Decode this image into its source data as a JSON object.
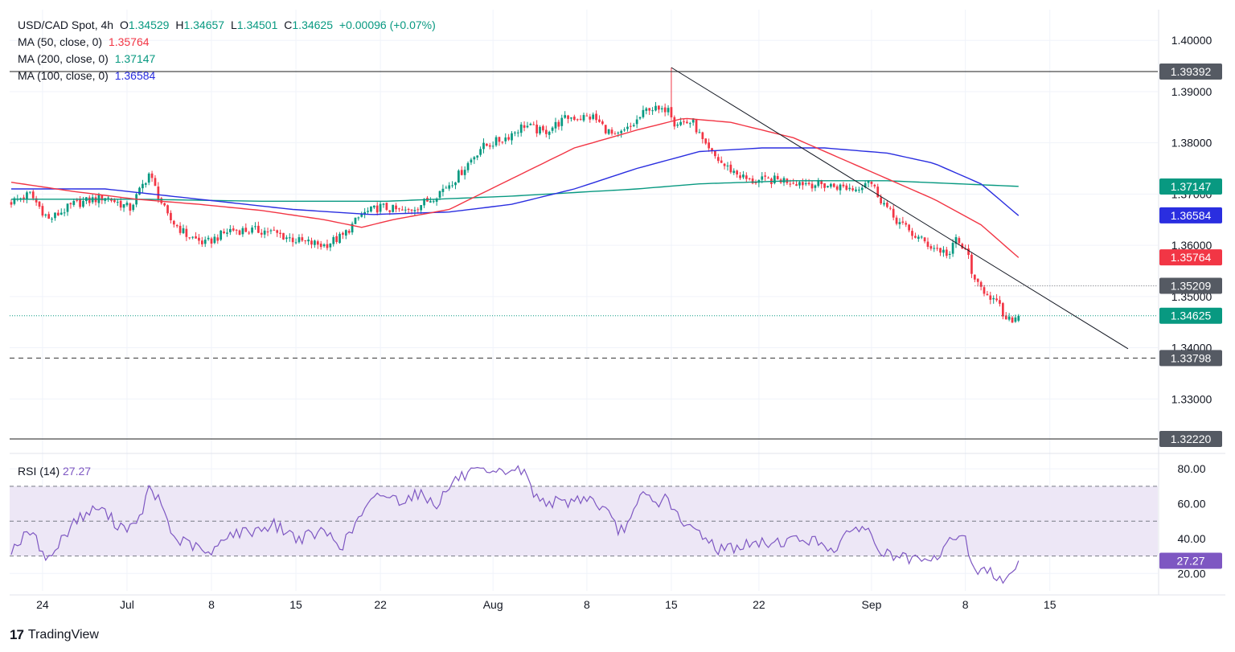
{
  "header": {
    "symbol": "USD/CAD Spot, 4h",
    "open_label": "O",
    "open": "1.34529",
    "high_label": "H",
    "high": "1.34657",
    "low_label": "L",
    "low": "1.34501",
    "close_label": "C",
    "close": "1.34625",
    "change": "+0.00096 (+0.07%)"
  },
  "ma_legend": [
    {
      "label": "MA (50, close, 0)",
      "value": "1.35764",
      "color": "#f23645"
    },
    {
      "label": "MA (200, close, 0)",
      "value": "1.37147",
      "color": "#089981"
    },
    {
      "label": "MA (100, close, 0)",
      "value": "1.36584",
      "color": "#2a2ee0"
    }
  ],
  "rsi_legend": {
    "label": "RSI (14)",
    "value": "27.27",
    "color": "#7e57c2"
  },
  "branding": {
    "name": "TradingView"
  },
  "colors": {
    "up": "#089981",
    "down": "#f23645",
    "ma50": "#f23645",
    "ma100": "#2a2ee0",
    "ma200": "#089981",
    "rsi": "#7e57c2",
    "rsi_band": "#ede7f6",
    "level": "#4a4a4a",
    "badge_dark": "#555a63"
  },
  "chart_data": [
    {
      "type": "candlestick",
      "title": "USD/CAD Spot, 4h",
      "x_ticks": [
        "24",
        "Jul",
        "8",
        "15",
        "22",
        "Aug",
        "8",
        "15",
        "22",
        "Sep",
        "8",
        "15"
      ],
      "y_ticks": [
        "1.40000",
        "1.39000",
        "1.38000",
        "1.37000",
        "1.36000",
        "1.35000",
        "1.34000",
        "1.33000"
      ],
      "ylim": [
        1.32,
        1.406
      ],
      "anchor_points": [
        [
          0,
          1.3685
        ],
        [
          6,
          1.37
        ],
        [
          12,
          1.365
        ],
        [
          20,
          1.368
        ],
        [
          30,
          1.3695
        ],
        [
          38,
          1.3672
        ],
        [
          44,
          1.374
        ],
        [
          50,
          1.3655
        ],
        [
          56,
          1.362
        ],
        [
          62,
          1.3603
        ],
        [
          70,
          1.363
        ],
        [
          82,
          1.3628
        ],
        [
          92,
          1.3608
        ],
        [
          100,
          1.36
        ],
        [
          106,
          1.3618
        ],
        [
          112,
          1.366
        ],
        [
          118,
          1.3675
        ],
        [
          126,
          1.3665
        ],
        [
          134,
          1.369
        ],
        [
          142,
          1.373
        ],
        [
          150,
          1.379
        ],
        [
          158,
          1.381
        ],
        [
          164,
          1.3835
        ],
        [
          170,
          1.382
        ],
        [
          178,
          1.385
        ],
        [
          186,
          1.385
        ],
        [
          193,
          1.381
        ],
        [
          198,
          1.383
        ],
        [
          204,
          1.387
        ],
        [
          208,
          1.386
        ],
        [
          210,
          1.3875
        ],
        [
          212,
          1.384
        ],
        [
          218,
          1.384
        ],
        [
          222,
          1.379
        ],
        [
          228,
          1.3755
        ],
        [
          236,
          1.3725
        ],
        [
          246,
          1.3728
        ],
        [
          256,
          1.372
        ],
        [
          264,
          1.3715
        ],
        [
          270,
          1.371
        ],
        [
          274,
          1.373
        ],
        [
          278,
          1.369
        ],
        [
          282,
          1.3655
        ],
        [
          288,
          1.3622
        ],
        [
          294,
          1.3598
        ],
        [
          300,
          1.3582
        ],
        [
          302,
          1.3612
        ],
        [
          306,
          1.3578
        ],
        [
          308,
          1.3525
        ],
        [
          312,
          1.3508
        ],
        [
          316,
          1.3478
        ],
        [
          318,
          1.345
        ],
        [
          322,
          1.3462
        ]
      ],
      "last_index": 322,
      "ma50": {
        "name": "MA (50, close, 0)",
        "value": 1.35764,
        "path": [
          [
            0,
            1.3723
          ],
          [
            20,
            1.3705
          ],
          [
            40,
            1.369
          ],
          [
            60,
            1.368
          ],
          [
            80,
            1.3668
          ],
          [
            100,
            1.365
          ],
          [
            112,
            1.3635
          ],
          [
            122,
            1.365
          ],
          [
            140,
            1.367
          ],
          [
            160,
            1.373
          ],
          [
            180,
            1.379
          ],
          [
            200,
            1.3825
          ],
          [
            215,
            1.3848
          ],
          [
            230,
            1.384
          ],
          [
            250,
            1.381
          ],
          [
            265,
            1.377
          ],
          [
            280,
            1.373
          ],
          [
            295,
            1.369
          ],
          [
            310,
            1.364
          ],
          [
            322,
            1.3576
          ]
        ]
      },
      "ma100": {
        "name": "MA (100, close, 0)",
        "value": 1.36584,
        "path": [
          [
            0,
            1.371
          ],
          [
            30,
            1.371
          ],
          [
            60,
            1.369
          ],
          [
            90,
            1.367
          ],
          [
            115,
            1.366
          ],
          [
            140,
            1.3665
          ],
          [
            160,
            1.368
          ],
          [
            180,
            1.371
          ],
          [
            200,
            1.375
          ],
          [
            220,
            1.3783
          ],
          [
            240,
            1.379
          ],
          [
            260,
            1.379
          ],
          [
            280,
            1.378
          ],
          [
            295,
            1.376
          ],
          [
            310,
            1.372
          ],
          [
            322,
            1.3658
          ]
        ]
      },
      "ma200": {
        "name": "MA (200, close, 0)",
        "value": 1.37147,
        "path": [
          [
            0,
            1.369
          ],
          [
            40,
            1.369
          ],
          [
            80,
            1.3686
          ],
          [
            120,
            1.3686
          ],
          [
            160,
            1.3696
          ],
          [
            200,
            1.371
          ],
          [
            220,
            1.372
          ],
          [
            250,
            1.3726
          ],
          [
            280,
            1.3726
          ],
          [
            322,
            1.3715
          ]
        ]
      },
      "levels": [
        {
          "value": 1.39392,
          "label": "1.39392",
          "style": "solid"
        },
        {
          "value": 1.35209,
          "label": "1.35209",
          "style": "dotted"
        },
        {
          "value": 1.33798,
          "label": "1.33798",
          "style": "dashed"
        },
        {
          "value": 1.3222,
          "label": "1.32220",
          "style": "solid"
        }
      ],
      "trendline": [
        [
          1.3947,
          211
        ],
        [
          1.3398,
          357
        ]
      ],
      "last_price": {
        "value": 1.34625,
        "label": "1.34625"
      },
      "ma_badges": [
        {
          "value": 1.37147,
          "label": "1.37147",
          "color": "#089981"
        },
        {
          "value": 1.36584,
          "label": "1.36584",
          "color": "#2a2ee0"
        },
        {
          "value": 1.35764,
          "label": "1.35764",
          "color": "#f23645"
        }
      ]
    },
    {
      "type": "line",
      "title": "RSI (14)",
      "series": [
        {
          "name": "RSI (14)",
          "last": 27.27
        }
      ],
      "y_ticks": [
        "80.00",
        "60.00",
        "40.00",
        "20.00"
      ],
      "ylim": [
        10,
        87
      ],
      "bands": [
        70,
        50,
        30
      ],
      "anchor_points": [
        [
          0,
          34
        ],
        [
          6,
          44
        ],
        [
          12,
          28
        ],
        [
          20,
          50
        ],
        [
          28,
          58
        ],
        [
          34,
          48
        ],
        [
          40,
          46
        ],
        [
          44,
          68
        ],
        [
          48,
          60
        ],
        [
          52,
          40
        ],
        [
          58,
          36
        ],
        [
          64,
          30
        ],
        [
          68,
          42
        ],
        [
          76,
          44
        ],
        [
          84,
          48
        ],
        [
          92,
          40
        ],
        [
          100,
          44
        ],
        [
          106,
          36
        ],
        [
          112,
          54
        ],
        [
          118,
          66
        ],
        [
          124,
          62
        ],
        [
          130,
          66
        ],
        [
          136,
          60
        ],
        [
          142,
          74
        ],
        [
          148,
          78
        ],
        [
          154,
          76
        ],
        [
          160,
          80
        ],
        [
          164,
          78
        ],
        [
          168,
          63
        ],
        [
          176,
          60
        ],
        [
          184,
          64
        ],
        [
          190,
          56
        ],
        [
          194,
          44
        ],
        [
          198,
          50
        ],
        [
          202,
          66
        ],
        [
          206,
          60
        ],
        [
          210,
          64
        ],
        [
          214,
          48
        ],
        [
          220,
          44
        ],
        [
          226,
          34
        ],
        [
          234,
          36
        ],
        [
          244,
          38
        ],
        [
          254,
          40
        ],
        [
          264,
          34
        ],
        [
          270,
          48
        ],
        [
          274,
          44
        ],
        [
          278,
          32
        ],
        [
          286,
          28
        ],
        [
          294,
          26
        ],
        [
          300,
          38
        ],
        [
          304,
          44
        ],
        [
          308,
          22
        ],
        [
          314,
          20
        ],
        [
          318,
          17
        ],
        [
          322,
          27.27
        ]
      ],
      "last_badge": {
        "value": 27.27,
        "label": "27.27"
      }
    }
  ]
}
